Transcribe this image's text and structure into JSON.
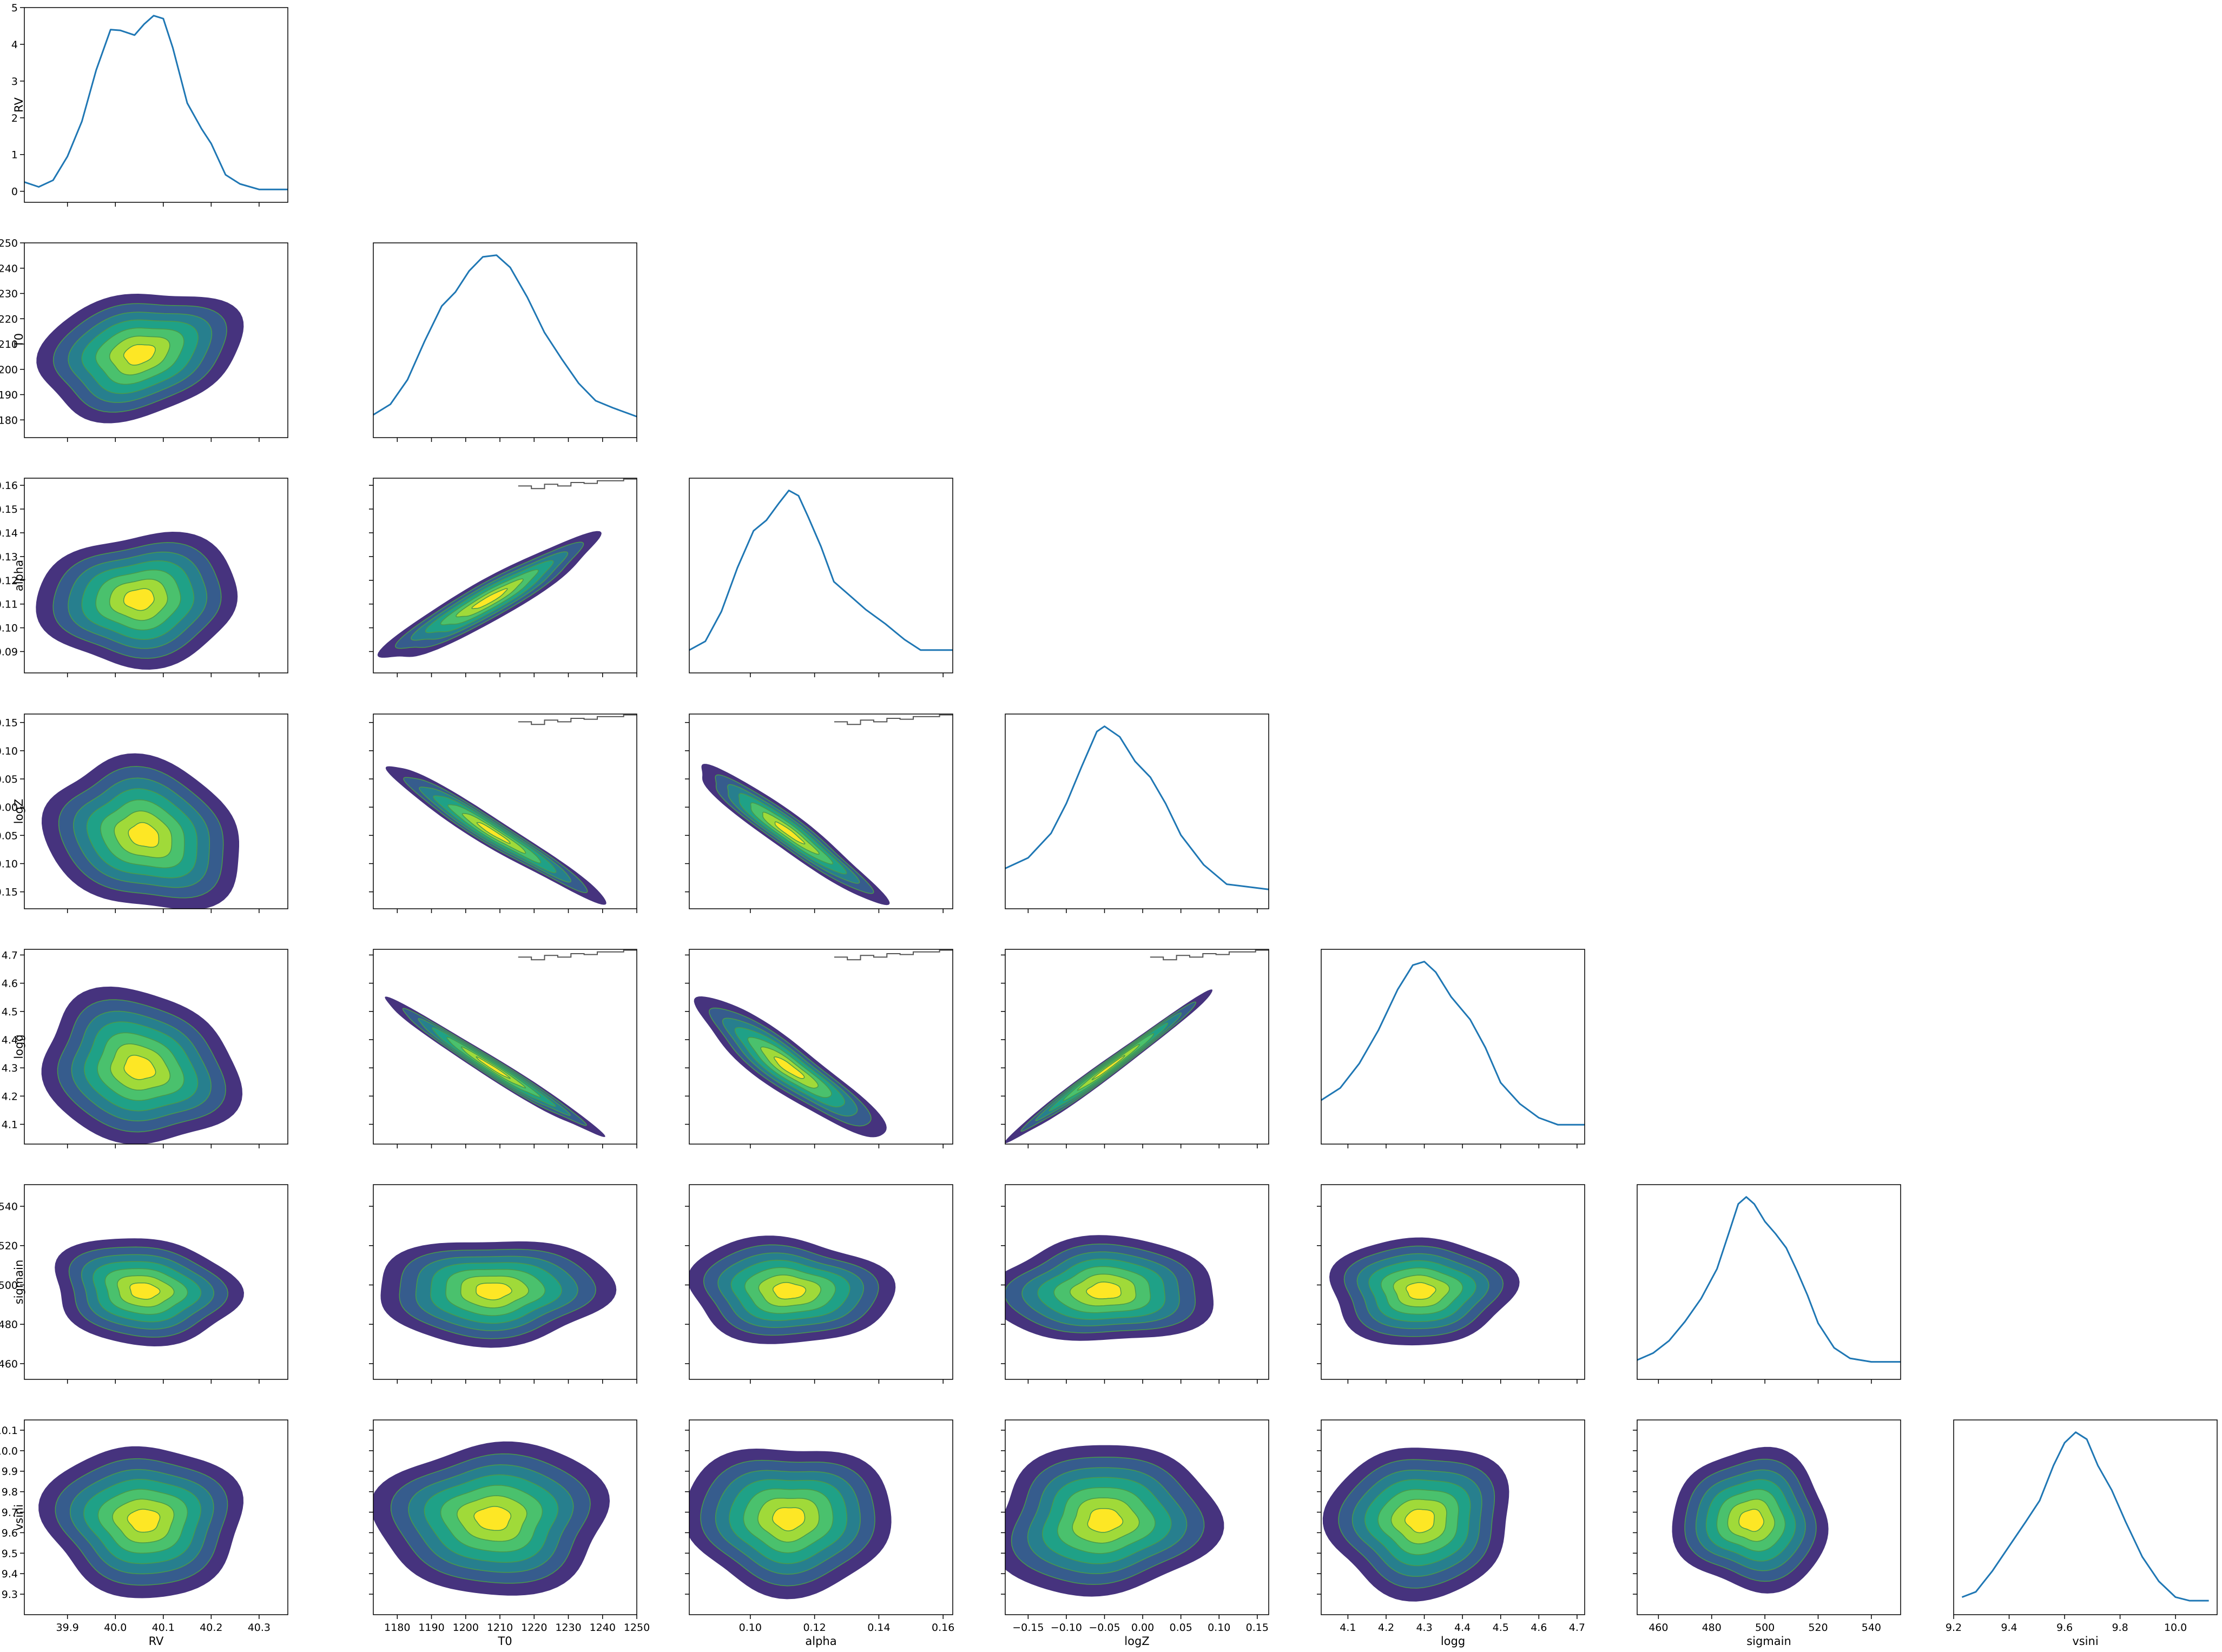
{
  "chart_data": {
    "type": "corner_plot",
    "parameters": [
      "RV",
      "T0",
      "alpha",
      "logZ",
      "logg",
      "sigmain",
      "vsini"
    ],
    "axes": {
      "RV": {
        "label": "RV",
        "range": [
          39.81,
          40.36
        ],
        "ticks": [
          39.9,
          40.0,
          40.1,
          40.2,
          40.3
        ],
        "tick_labels": [
          "39.9",
          "40.0",
          "40.1",
          "40.2",
          "40.3"
        ]
      },
      "T0": {
        "label": "T0",
        "range": [
          1173,
          1250
        ],
        "ticks": [
          1180,
          1190,
          1200,
          1210,
          1220,
          1230,
          1240,
          1250
        ],
        "tick_labels": [
          "1180",
          "1190",
          "1200",
          "1210",
          "1220",
          "1230",
          "1240",
          "1250"
        ]
      },
      "alpha": {
        "label": "alpha",
        "range": [
          0.081,
          0.163
        ],
        "ticks": [
          0.09,
          0.1,
          0.11,
          0.12,
          0.13,
          0.14,
          0.15,
          0.16
        ],
        "tick_labels": [
          "0.09",
          "0.10",
          "0.11",
          "0.12",
          "0.13",
          "0.14",
          "0.15",
          "0.16"
        ],
        "x_ticks": [
          0.1,
          0.12,
          0.14,
          0.16
        ],
        "x_tick_labels": [
          "0.10",
          "0.12",
          "0.14",
          "0.16"
        ]
      },
      "logZ": {
        "label": "logZ",
        "range": [
          -0.18,
          0.165
        ],
        "ticks": [
          -0.15,
          -0.1,
          -0.05,
          0.0,
          0.05,
          0.1,
          0.15
        ],
        "tick_labels": [
          "−0.15",
          "−0.10",
          "−0.05",
          "0.00",
          "0.05",
          "0.10",
          "0.15"
        ]
      },
      "logg": {
        "label": "logg",
        "range": [
          4.03,
          4.72
        ],
        "ticks": [
          4.1,
          4.2,
          4.3,
          4.4,
          4.5,
          4.6,
          4.7
        ],
        "tick_labels": [
          "4.1",
          "4.2",
          "4.3",
          "4.4",
          "4.5",
          "4.6",
          "4.7"
        ]
      },
      "sigmain": {
        "label": "sigmain",
        "range": [
          452,
          551
        ],
        "ticks": [
          460,
          480,
          500,
          520,
          540
        ],
        "tick_labels": [
          "460",
          "480",
          "500",
          "520",
          "540"
        ]
      },
      "vsini": {
        "label": "vsini",
        "range": [
          9.2,
          10.15
        ],
        "ticks": [
          9.3,
          9.4,
          9.5,
          9.6,
          9.7,
          9.8,
          9.9,
          10.0,
          10.1
        ],
        "tick_labels": [
          "9.3",
          "9.4",
          "9.5",
          "9.6",
          "9.7",
          "9.8",
          "9.9",
          "10.0",
          "10.1"
        ],
        "x_ticks": [
          9.2,
          9.4,
          9.6,
          9.8,
          10.0
        ],
        "x_tick_labels": [
          "9.2",
          "9.4",
          "9.6",
          "9.8",
          "10.0"
        ]
      }
    },
    "diagonal_kde": {
      "RV": {
        "y_range": [
          -0.3,
          5.0
        ],
        "y_ticks": [
          0,
          1,
          2,
          3,
          4,
          5
        ],
        "y_tick_labels": [
          "0",
          "1",
          "2",
          "3",
          "4",
          "5"
        ],
        "x": [
          39.81,
          39.84,
          39.87,
          39.9,
          39.93,
          39.96,
          39.99,
          40.01,
          40.04,
          40.06,
          40.08,
          40.1,
          40.12,
          40.15,
          40.18,
          40.2,
          40.23,
          40.26,
          40.3,
          40.36
        ],
        "y": [
          0.25,
          0.12,
          0.3,
          0.95,
          1.9,
          3.3,
          4.4,
          4.38,
          4.25,
          4.55,
          4.78,
          4.7,
          3.9,
          2.4,
          1.7,
          1.3,
          0.45,
          0.2,
          0.05,
          0.05
        ]
      },
      "T0": {
        "x": [
          1173,
          1178,
          1183,
          1188,
          1193,
          1197,
          1201,
          1205,
          1209,
          1213,
          1218,
          1223,
          1228,
          1233,
          1238,
          1243,
          1250
        ],
        "y": [
          0.08,
          0.14,
          0.28,
          0.5,
          0.7,
          0.78,
          0.9,
          0.98,
          0.99,
          0.92,
          0.75,
          0.55,
          0.4,
          0.26,
          0.16,
          0.12,
          0.07
        ]
      },
      "alpha": {
        "x": [
          0.081,
          0.086,
          0.091,
          0.096,
          0.101,
          0.105,
          0.109,
          0.112,
          0.115,
          0.118,
          0.122,
          0.126,
          0.131,
          0.136,
          0.142,
          0.148,
          0.153,
          0.163
        ],
        "y": [
          0.08,
          0.13,
          0.3,
          0.55,
          0.76,
          0.82,
          0.92,
          0.99,
          0.96,
          0.84,
          0.67,
          0.47,
          0.39,
          0.31,
          0.23,
          0.14,
          0.08,
          0.08
        ]
      },
      "logZ": {
        "x": [
          -0.18,
          -0.15,
          -0.12,
          -0.1,
          -0.08,
          -0.06,
          -0.05,
          -0.03,
          -0.01,
          0.01,
          0.03,
          0.05,
          0.08,
          0.11,
          0.165
        ],
        "y": [
          0.18,
          0.24,
          0.38,
          0.55,
          0.76,
          0.96,
          0.99,
          0.93,
          0.79,
          0.7,
          0.55,
          0.37,
          0.2,
          0.09,
          0.06
        ]
      },
      "logg": {
        "x": [
          4.03,
          4.08,
          4.13,
          4.18,
          4.23,
          4.27,
          4.3,
          4.33,
          4.37,
          4.42,
          4.46,
          4.5,
          4.55,
          4.6,
          4.65,
          4.72
        ],
        "y": [
          0.2,
          0.27,
          0.41,
          0.6,
          0.83,
          0.97,
          0.99,
          0.93,
          0.79,
          0.66,
          0.5,
          0.3,
          0.18,
          0.1,
          0.06,
          0.06
        ]
      },
      "sigmain": {
        "x": [
          452,
          458,
          464,
          470,
          476,
          482,
          487,
          490,
          493,
          496,
          500,
          504,
          508,
          512,
          516,
          520,
          526,
          532,
          540,
          551
        ],
        "y": [
          0.06,
          0.1,
          0.17,
          0.28,
          0.41,
          0.58,
          0.81,
          0.95,
          0.99,
          0.95,
          0.85,
          0.78,
          0.7,
          0.57,
          0.43,
          0.27,
          0.13,
          0.07,
          0.05,
          0.05
        ]
      },
      "vsini": {
        "x": [
          9.23,
          9.28,
          9.34,
          9.4,
          9.46,
          9.51,
          9.56,
          9.6,
          9.64,
          9.68,
          9.72,
          9.77,
          9.82,
          9.88,
          9.94,
          10.0,
          10.05,
          10.12
        ],
        "y": [
          0.05,
          0.08,
          0.2,
          0.34,
          0.48,
          0.6,
          0.8,
          0.93,
          0.99,
          0.95,
          0.8,
          0.66,
          0.48,
          0.28,
          0.14,
          0.05,
          0.03,
          0.03
        ]
      }
    },
    "joint_kde": [
      {
        "x": "RV",
        "y": "T0",
        "mean": [
          40.05,
          1206
        ],
        "sd": [
          0.085,
          10.5
        ],
        "rho": 0.22
      },
      {
        "x": "RV",
        "y": "alpha",
        "mean": [
          40.05,
          0.112
        ],
        "sd": [
          0.085,
          0.0115
        ],
        "rho": 0.05
      },
      {
        "x": "RV",
        "y": "logZ",
        "mean": [
          40.06,
          -0.05
        ],
        "sd": [
          0.085,
          0.055
        ],
        "rho": -0.2
      },
      {
        "x": "RV",
        "y": "logg",
        "mean": [
          40.05,
          4.3
        ],
        "sd": [
          0.085,
          0.11
        ],
        "rho": -0.15
      },
      {
        "x": "RV",
        "y": "sigmain",
        "mean": [
          40.06,
          497
        ],
        "sd": [
          0.08,
          11
        ],
        "rho": -0.1
      },
      {
        "x": "RV",
        "y": "vsini",
        "mean": [
          40.06,
          9.66
        ],
        "sd": [
          0.085,
          0.15
        ],
        "rho": 0.0
      },
      {
        "x": "T0",
        "y": "alpha",
        "mean": [
          1207,
          0.112
        ],
        "sd": [
          13,
          0.011
        ],
        "rho": 0.93
      },
      {
        "x": "T0",
        "y": "logZ",
        "mean": [
          1208,
          -0.045
        ],
        "sd": [
          13,
          0.05
        ],
        "rho": -0.97
      },
      {
        "x": "T0",
        "y": "logg",
        "mean": [
          1208,
          4.3
        ],
        "sd": [
          13,
          0.1
        ],
        "rho": -0.985
      },
      {
        "x": "T0",
        "y": "sigmain",
        "mean": [
          1208,
          497
        ],
        "sd": [
          14,
          11
        ],
        "rho": 0.0
      },
      {
        "x": "T0",
        "y": "vsini",
        "mean": [
          1208,
          9.67
        ],
        "sd": [
          14,
          0.15
        ],
        "rho": 0.0
      },
      {
        "x": "alpha",
        "y": "logZ",
        "mean": [
          0.112,
          -0.045
        ],
        "sd": [
          0.012,
          0.05
        ],
        "rho": -0.95
      },
      {
        "x": "alpha",
        "y": "logg",
        "mean": [
          0.112,
          4.3
        ],
        "sd": [
          0.012,
          0.1
        ],
        "rho": -0.9
      },
      {
        "x": "alpha",
        "y": "sigmain",
        "mean": [
          0.112,
          497
        ],
        "sd": [
          0.013,
          11
        ],
        "rho": -0.05
      },
      {
        "x": "alpha",
        "y": "vsini",
        "mean": [
          0.112,
          9.67
        ],
        "sd": [
          0.013,
          0.15
        ],
        "rho": 0.0
      },
      {
        "x": "logZ",
        "y": "logg",
        "mean": [
          -0.045,
          4.3
        ],
        "sd": [
          0.055,
          0.11
        ],
        "rho": 0.99
      },
      {
        "x": "logZ",
        "y": "sigmain",
        "mean": [
          -0.05,
          497
        ],
        "sd": [
          0.06,
          11
        ],
        "rho": 0.0
      },
      {
        "x": "logZ",
        "y": "vsini",
        "mean": [
          -0.05,
          9.66
        ],
        "sd": [
          0.06,
          0.15
        ],
        "rho": 0.05
      },
      {
        "x": "logg",
        "y": "sigmain",
        "mean": [
          4.29,
          497
        ],
        "sd": [
          0.1,
          11
        ],
        "rho": 0.0
      },
      {
        "x": "logg",
        "y": "vsini",
        "mean": [
          4.29,
          9.66
        ],
        "sd": [
          0.1,
          0.15
        ],
        "rho": 0.05
      },
      {
        "x": "sigmain",
        "y": "vsini",
        "mean": [
          495,
          9.66
        ],
        "sd": [
          12,
          0.14
        ],
        "rho": 0.0
      }
    ],
    "contour_fill_colors": [
      "#46337e",
      "#365c8d",
      "#277f8e",
      "#1fa187",
      "#4ac16d",
      "#a0da39",
      "#fde725"
    ],
    "contour_line_color": "#4a9a4a",
    "kde_line_color": "#1f77b4",
    "boundary_line_color": "#555555"
  }
}
